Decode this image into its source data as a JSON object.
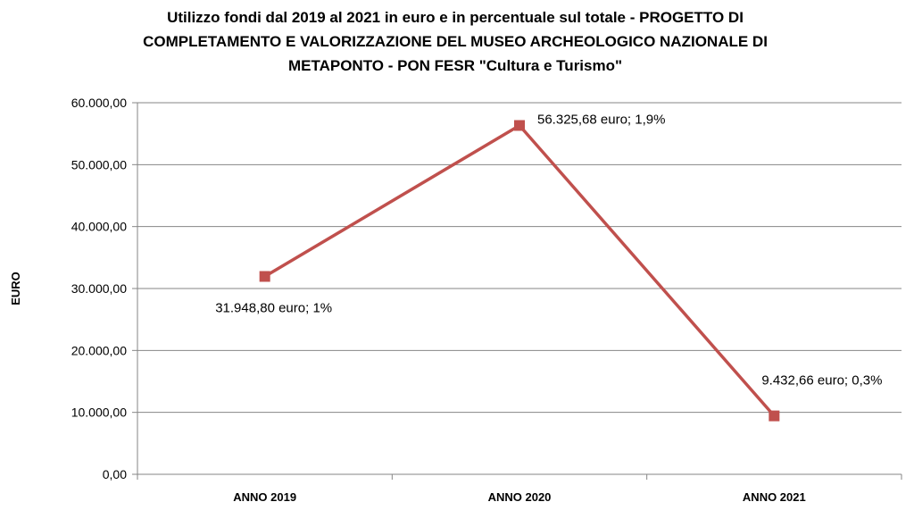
{
  "chart_data": {
    "type": "line",
    "title_lines": [
      "Utilizzo fondi dal 2019 al 2021 in euro e in percentuale sul totale - PROGETTO DI",
      "COMPLETAMENTO E VALORIZZAZIONE DEL MUSEO ARCHEOLOGICO NAZIONALE DI",
      "METAPONTO - PON FESR \"Cultura e Turismo\""
    ],
    "xlabel": "",
    "ylabel": "EURO",
    "categories": [
      "ANNO 2019",
      "ANNO 2020",
      "ANNO 2021"
    ],
    "series": [
      {
        "values": [
          31948.8,
          56325.68,
          9432.66
        ],
        "data_labels": [
          "31.948,80 euro; 1%",
          "56.325,68 euro; 1,9%",
          "9.432,66 euro; 0,3%"
        ],
        "color": "#c0504d"
      }
    ],
    "ylim": [
      0,
      60000
    ],
    "yticks": [
      0,
      10000,
      20000,
      30000,
      40000,
      50000,
      60000
    ],
    "ytick_labels": [
      "0,00",
      "10.000,00",
      "20.000,00",
      "30.000,00",
      "40.000,00",
      "50.000,00",
      "60.000,00"
    ],
    "grid": true,
    "gridline_color": "#868686",
    "line_color": "#c0504d",
    "marker_color": "#c0504d",
    "legend": "none"
  }
}
